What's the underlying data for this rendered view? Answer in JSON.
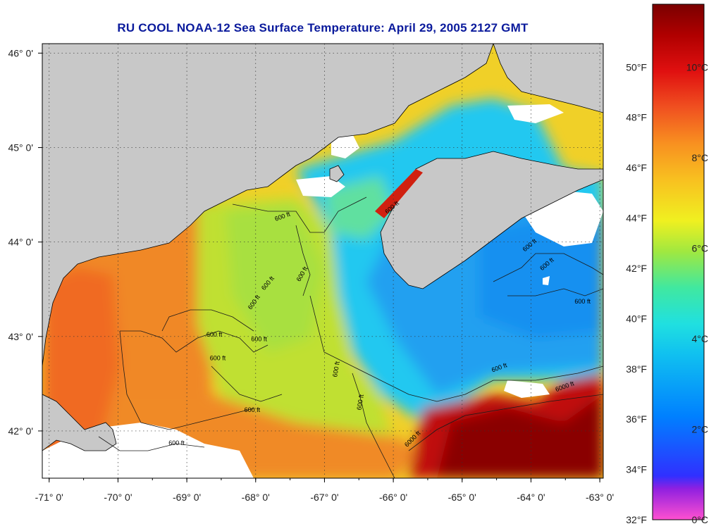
{
  "title": "RU COOL  NOAA-12  Sea Surface Temperature:  April 29, 2005 2127 GMT",
  "colors": {
    "land": "#c8c8c8",
    "cloud": "#ffffff",
    "coastline": "#000000",
    "title": "#0a1a9c"
  },
  "map": {
    "lon_range": [
      -71.1,
      -62.95
    ],
    "lat_range": [
      41.5,
      46.1
    ],
    "lon_ticks": [
      "-71° 0'",
      "-70° 0'",
      "-69° 0'",
      "-68° 0'",
      "-67° 0'",
      "-66° 0'",
      "-65° 0'",
      "-64° 0'",
      "-63° 0'"
    ],
    "lon_values": [
      -71,
      -70,
      -69,
      -68,
      -67,
      -66,
      -65,
      -64,
      -63
    ],
    "lat_ticks": [
      "46° 0'",
      "45° 0'",
      "44° 0'",
      "43° 0'",
      "42° 0'"
    ],
    "lat_values": [
      46,
      45,
      44,
      43,
      42
    ],
    "grid": "dotted",
    "contour_labels": [
      {
        "text": "600 ft",
        "lon": -67.6,
        "lat": 44.25,
        "rot": -20
      },
      {
        "text": "600 ft",
        "lon": -67.3,
        "lat": 43.65,
        "rot": -60
      },
      {
        "text": "600 ft",
        "lon": -67.8,
        "lat": 43.55,
        "rot": -50
      },
      {
        "text": "600 ft",
        "lon": -68.0,
        "lat": 43.35,
        "rot": -55
      },
      {
        "text": "600 ft",
        "lon": -68.6,
        "lat": 43.0,
        "rot": 0
      },
      {
        "text": "600 ft",
        "lon": -67.95,
        "lat": 42.95,
        "rot": 0
      },
      {
        "text": "600 ft",
        "lon": -68.55,
        "lat": 42.75,
        "rot": 0
      },
      {
        "text": "600 ft",
        "lon": -68.05,
        "lat": 42.2,
        "rot": 0
      },
      {
        "text": "600 ft",
        "lon": -69.15,
        "lat": 41.85,
        "rot": 0
      },
      {
        "text": "600 ft",
        "lon": -66.8,
        "lat": 42.65,
        "rot": -80
      },
      {
        "text": "600 ft",
        "lon": -66.45,
        "lat": 42.3,
        "rot": -80
      },
      {
        "text": "600 ft",
        "lon": -66.0,
        "lat": 44.35,
        "rot": -40
      },
      {
        "text": "600 ft",
        "lon": -64.0,
        "lat": 43.95,
        "rot": -40
      },
      {
        "text": "600 ft",
        "lon": -63.75,
        "lat": 43.75,
        "rot": -40
      },
      {
        "text": "600 ft",
        "lon": -63.25,
        "lat": 43.35,
        "rot": 0
      },
      {
        "text": "600 ft",
        "lon": -64.45,
        "lat": 42.65,
        "rot": -20
      },
      {
        "text": "6000 ft",
        "lon": -63.5,
        "lat": 42.45,
        "rot": -20
      },
      {
        "text": "6000 ft",
        "lon": -65.7,
        "lat": 41.9,
        "rot": -45
      }
    ]
  },
  "colorbar": {
    "f_labels": [
      "50°F",
      "48°F",
      "46°F",
      "44°F",
      "42°F",
      "40°F",
      "38°F",
      "36°F",
      "34°F",
      "32°F"
    ],
    "f_values": [
      50,
      48,
      46,
      44,
      42,
      40,
      38,
      36,
      34,
      32
    ],
    "c_labels": [
      "10°C",
      "8°C",
      "6°C",
      "4°C",
      "2°C",
      "0°C"
    ],
    "c_values": [
      10,
      8,
      6,
      4,
      2,
      0
    ],
    "range_f": [
      32,
      52.5
    ],
    "stops": [
      "#ff50d0",
      "#9020e0",
      "#3030ff",
      "#0080ff",
      "#10c0f0",
      "#20e0e0",
      "#40e8a0",
      "#a0e840",
      "#f0f020",
      "#f8c020",
      "#f89020",
      "#f05020",
      "#e01010",
      "#b00000",
      "#7a0000"
    ]
  }
}
